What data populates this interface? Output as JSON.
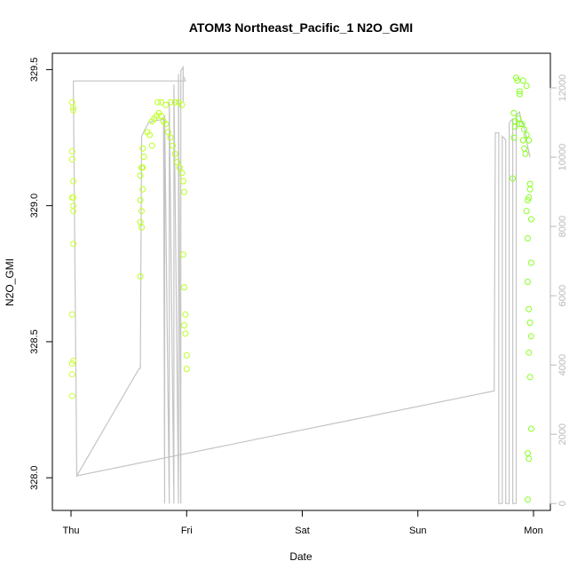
{
  "chart_data": {
    "type": "scatter",
    "title": "ATOM3 Northeast_Pacific_1 N2O_GMI",
    "xlabel": "Date",
    "ylabel": "N2O_GMI",
    "x_ticks": [
      "Thu",
      "Fri",
      "Sat",
      "Sun",
      "Mon"
    ],
    "ylim": [
      327.88,
      329.56
    ],
    "y_ticks": [
      "328.0",
      "328.5",
      "329.0",
      "329.5"
    ],
    "y2lim": [
      -200,
      13000
    ],
    "y2_ticks": [
      "0",
      "2000",
      "4000",
      "6000",
      "8000",
      "10000",
      "12000"
    ],
    "colors": {
      "early": "#ccff33",
      "mid": "#bbff1f",
      "late": "#88ff22",
      "line": "#c4c4c4"
    },
    "series": [
      {
        "type": "scatter",
        "points": [
          {
            "x": 0.01,
            "y": 329.38
          },
          {
            "x": 0.02,
            "y": 329.36
          },
          {
            "x": 0.02,
            "y": 329.35
          },
          {
            "x": 0.01,
            "y": 329.2
          },
          {
            "x": 0.01,
            "y": 329.17
          },
          {
            "x": 0.02,
            "y": 329.09
          },
          {
            "x": 0.02,
            "y": 329.03
          },
          {
            "x": 0.01,
            "y": 329.03
          },
          {
            "x": 0.02,
            "y": 329.0
          },
          {
            "x": 0.02,
            "y": 328.98
          },
          {
            "x": 0.02,
            "y": 328.86
          },
          {
            "x": 0.01,
            "y": 328.6
          },
          {
            "x": 0.02,
            "y": 328.43
          },
          {
            "x": 0.01,
            "y": 328.42
          },
          {
            "x": 0.01,
            "y": 328.38
          },
          {
            "x": 0.01,
            "y": 328.3
          },
          {
            "x": 0.61,
            "y": 329.14
          },
          {
            "x": 0.62,
            "y": 329.14
          },
          {
            "x": 0.6,
            "y": 329.11
          },
          {
            "x": 0.62,
            "y": 329.06
          },
          {
            "x": 0.6,
            "y": 329.02
          },
          {
            "x": 0.61,
            "y": 328.98
          },
          {
            "x": 0.6,
            "y": 328.94
          },
          {
            "x": 0.61,
            "y": 328.92
          },
          {
            "x": 0.6,
            "y": 328.74
          },
          {
            "x": 0.62,
            "y": 329.21
          },
          {
            "x": 0.63,
            "y": 329.18
          },
          {
            "x": 0.68,
            "y": 329.26
          },
          {
            "x": 0.66,
            "y": 329.27
          },
          {
            "x": 0.7,
            "y": 329.22
          },
          {
            "x": 0.7,
            "y": 329.31
          },
          {
            "x": 0.72,
            "y": 329.32
          },
          {
            "x": 0.74,
            "y": 329.33
          },
          {
            "x": 0.76,
            "y": 329.34
          },
          {
            "x": 0.78,
            "y": 329.33
          },
          {
            "x": 0.8,
            "y": 329.31
          },
          {
            "x": 0.82,
            "y": 329.3
          },
          {
            "x": 0.84,
            "y": 329.27
          },
          {
            "x": 0.86,
            "y": 329.25
          },
          {
            "x": 0.88,
            "y": 329.22
          },
          {
            "x": 0.9,
            "y": 329.19
          },
          {
            "x": 0.92,
            "y": 329.16
          },
          {
            "x": 0.94,
            "y": 329.14
          },
          {
            "x": 0.96,
            "y": 329.12
          },
          {
            "x": 0.97,
            "y": 329.09
          },
          {
            "x": 0.98,
            "y": 329.05
          },
          {
            "x": 0.75,
            "y": 329.38
          },
          {
            "x": 0.78,
            "y": 329.38
          },
          {
            "x": 0.82,
            "y": 329.37
          },
          {
            "x": 0.86,
            "y": 329.38
          },
          {
            "x": 0.9,
            "y": 329.38
          },
          {
            "x": 0.93,
            "y": 329.38
          },
          {
            "x": 0.96,
            "y": 329.37
          },
          {
            "x": 0.97,
            "y": 328.82
          },
          {
            "x": 0.98,
            "y": 328.7
          },
          {
            "x": 0.99,
            "y": 328.6
          },
          {
            "x": 0.98,
            "y": 328.56
          },
          {
            "x": 0.99,
            "y": 328.53
          },
          {
            "x": 1.0,
            "y": 328.45
          },
          {
            "x": 1.0,
            "y": 328.4
          },
          {
            "x": 3.85,
            "y": 329.47
          },
          {
            "x": 3.86,
            "y": 329.46
          },
          {
            "x": 3.91,
            "y": 329.46
          },
          {
            "x": 3.94,
            "y": 329.44
          },
          {
            "x": 3.88,
            "y": 329.42
          },
          {
            "x": 3.88,
            "y": 329.41
          },
          {
            "x": 3.83,
            "y": 329.34
          },
          {
            "x": 3.84,
            "y": 329.31
          },
          {
            "x": 3.84,
            "y": 329.29
          },
          {
            "x": 3.83,
            "y": 329.25
          },
          {
            "x": 3.87,
            "y": 329.32
          },
          {
            "x": 3.88,
            "y": 329.3
          },
          {
            "x": 3.9,
            "y": 329.3
          },
          {
            "x": 3.92,
            "y": 329.28
          },
          {
            "x": 3.94,
            "y": 329.26
          },
          {
            "x": 3.96,
            "y": 329.24
          },
          {
            "x": 3.91,
            "y": 329.24
          },
          {
            "x": 3.92,
            "y": 329.21
          },
          {
            "x": 3.93,
            "y": 329.19
          },
          {
            "x": 3.82,
            "y": 329.1
          },
          {
            "x": 3.97,
            "y": 329.08
          },
          {
            "x": 3.97,
            "y": 329.06
          },
          {
            "x": 3.96,
            "y": 329.03
          },
          {
            "x": 3.95,
            "y": 329.02
          },
          {
            "x": 3.94,
            "y": 328.98
          },
          {
            "x": 3.98,
            "y": 328.95
          },
          {
            "x": 3.95,
            "y": 328.88
          },
          {
            "x": 3.98,
            "y": 328.79
          },
          {
            "x": 3.95,
            "y": 328.72
          },
          {
            "x": 3.96,
            "y": 328.62
          },
          {
            "x": 3.97,
            "y": 328.57
          },
          {
            "x": 3.98,
            "y": 328.52
          },
          {
            "x": 3.96,
            "y": 328.46
          },
          {
            "x": 3.97,
            "y": 328.37
          },
          {
            "x": 3.98,
            "y": 328.18
          },
          {
            "x": 3.95,
            "y": 328.09
          },
          {
            "x": 3.96,
            "y": 328.07
          },
          {
            "x": 3.95,
            "y": 327.92
          }
        ]
      },
      {
        "type": "line",
        "axis": "right",
        "points": [
          {
            "x": 0.02,
            "y": 12200
          },
          {
            "x": 0.02,
            "y": 12200
          },
          {
            "x": 0.05,
            "y": 800
          },
          {
            "x": 0.59,
            "y": 3900
          },
          {
            "x": 0.6,
            "y": 3900
          },
          {
            "x": 0.61,
            "y": 10600
          },
          {
            "x": 0.67,
            "y": 11000
          },
          {
            "x": 0.8,
            "y": 11100
          },
          {
            "x": 0.81,
            "y": 0
          },
          {
            "x": 0.81,
            "y": 11200
          },
          {
            "x": 0.85,
            "y": 0
          },
          {
            "x": 0.85,
            "y": 11600
          },
          {
            "x": 0.89,
            "y": 0
          },
          {
            "x": 0.89,
            "y": 12100
          },
          {
            "x": 0.93,
            "y": 0
          },
          {
            "x": 0.93,
            "y": 12400
          },
          {
            "x": 0.95,
            "y": 0
          },
          {
            "x": 0.95,
            "y": 12500
          },
          {
            "x": 0.97,
            "y": 12600
          },
          {
            "x": 0.97,
            "y": 11600
          },
          {
            "x": 0.97,
            "y": 12300
          },
          {
            "x": 0.98,
            "y": 12300
          },
          {
            "x": 0.99,
            "y": 12200
          },
          {
            "x": 0.02,
            "y": 12200
          }
        ]
      },
      {
        "type": "line",
        "axis": "right",
        "points": [
          {
            "x": 0.05,
            "y": 800
          },
          {
            "x": 3.66,
            "y": 3250
          },
          {
            "x": 3.67,
            "y": 10700
          },
          {
            "x": 3.7,
            "y": 10700
          },
          {
            "x": 3.7,
            "y": 0
          },
          {
            "x": 3.73,
            "y": 0
          },
          {
            "x": 3.73,
            "y": 10600
          },
          {
            "x": 3.76,
            "y": 10500
          },
          {
            "x": 3.76,
            "y": 0
          },
          {
            "x": 3.79,
            "y": 0
          },
          {
            "x": 3.79,
            "y": 11000
          },
          {
            "x": 3.82,
            "y": 11100
          },
          {
            "x": 3.82,
            "y": 0
          },
          {
            "x": 3.85,
            "y": 0
          },
          {
            "x": 3.85,
            "y": 11200
          },
          {
            "x": 3.88,
            "y": 11300
          },
          {
            "x": 3.89,
            "y": 11100
          },
          {
            "x": 3.92,
            "y": 10900
          },
          {
            "x": 3.95,
            "y": 10300
          },
          {
            "x": 3.97,
            "y": 10000
          }
        ]
      }
    ],
    "grid": false,
    "legend": "none"
  }
}
